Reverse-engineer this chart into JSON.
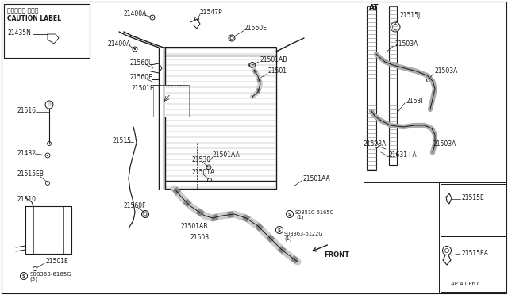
{
  "bg_color": "#ffffff",
  "line_color": "#1a1a1a",
  "text_color": "#1a1a1a",
  "fig_width": 6.4,
  "fig_height": 3.72,
  "dpi": 100,
  "labels": {
    "caution_jp": "コーション ラベル",
    "caution_en": "CAUTION LABEL",
    "part_caution": "21435N",
    "at": "AT",
    "front": "FRONT",
    "diagram_num": "AP 4:0P67",
    "p21400A_1": "21400A",
    "p21400A_2": "21400A",
    "p21547P": "21547P",
    "p21560E_1": "21560E",
    "p21560U": "21560U",
    "p21560E_2": "21560E",
    "p21501AB_1": "21501AB",
    "p21501": "21501",
    "p21516": "21516",
    "p21501E_1": "21501E",
    "p21432": "21432",
    "p21515": "21515",
    "p21515EB": "21515EB",
    "p21510": "21510",
    "p21560F": "21560F",
    "p21501E_2": "21501E",
    "p08363_6165G": "S08363-6165G",
    "p08363_6165G_n": "(3)",
    "p21530": "21530",
    "p21501AA_1": "21501AA",
    "p21501A": "21501A",
    "p21501AB_2": "21501AB",
    "p21503": "21503",
    "p08510_6165C": "08510-6165C",
    "p08510_6165C_n": "(1)",
    "p08363_6122G": "08363-6122G",
    "p08363_6122G_n": "(1)",
    "p21501AA_2": "21501AA",
    "p21503A_1": "21503A",
    "p21503A_2": "21503A",
    "p21503A_3": "21503A",
    "p21503A_4": "21503A",
    "p2163l": "2163l",
    "p21631A": "21631+A",
    "p21515J": "21515J",
    "p21515E": "21515E",
    "p21515EA": "21515EA"
  }
}
